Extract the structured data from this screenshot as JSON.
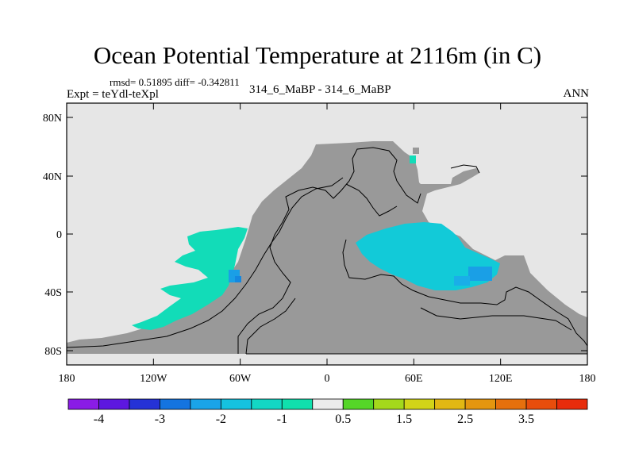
{
  "title": "Ocean Potential Temperature at 2116m (in C)",
  "stats_text": "rmsd= 0.51895 diff= -0.342811",
  "experiment_label": "Expt = teYdl-teXpl",
  "case_label": "314_6_MaBP - 314_6_MaBP",
  "season_label": "ANN",
  "map": {
    "lat_ticks": [
      "80N",
      "40N",
      "0",
      "40S",
      "80S"
    ],
    "lon_ticks": [
      "180",
      "120W",
      "60W",
      "0",
      "60E",
      "120E",
      "180"
    ]
  },
  "colorbar": {
    "labels": [
      "-4",
      "-3",
      "-2",
      "-1",
      "0.5",
      "1.5",
      "2.5",
      "3.5"
    ],
    "colors": [
      "#8a1ce6",
      "#5d17e0",
      "#2532d6",
      "#1474e0",
      "#1aa4e8",
      "#15c2e0",
      "#13d7c4",
      "#10e0ad",
      "#ececec",
      "#55d628",
      "#a4d81c",
      "#d2d418",
      "#e2b813",
      "#e4960f",
      "#e6700d",
      "#e84d0c",
      "#e82c0b"
    ]
  },
  "colors": {
    "land": "#999999",
    "nodata": "#e6e6e6",
    "anomaly_light": "#12dcb8",
    "anomaly_mid": "#12cad8",
    "anomaly_strong": "#1a9fe6"
  }
}
